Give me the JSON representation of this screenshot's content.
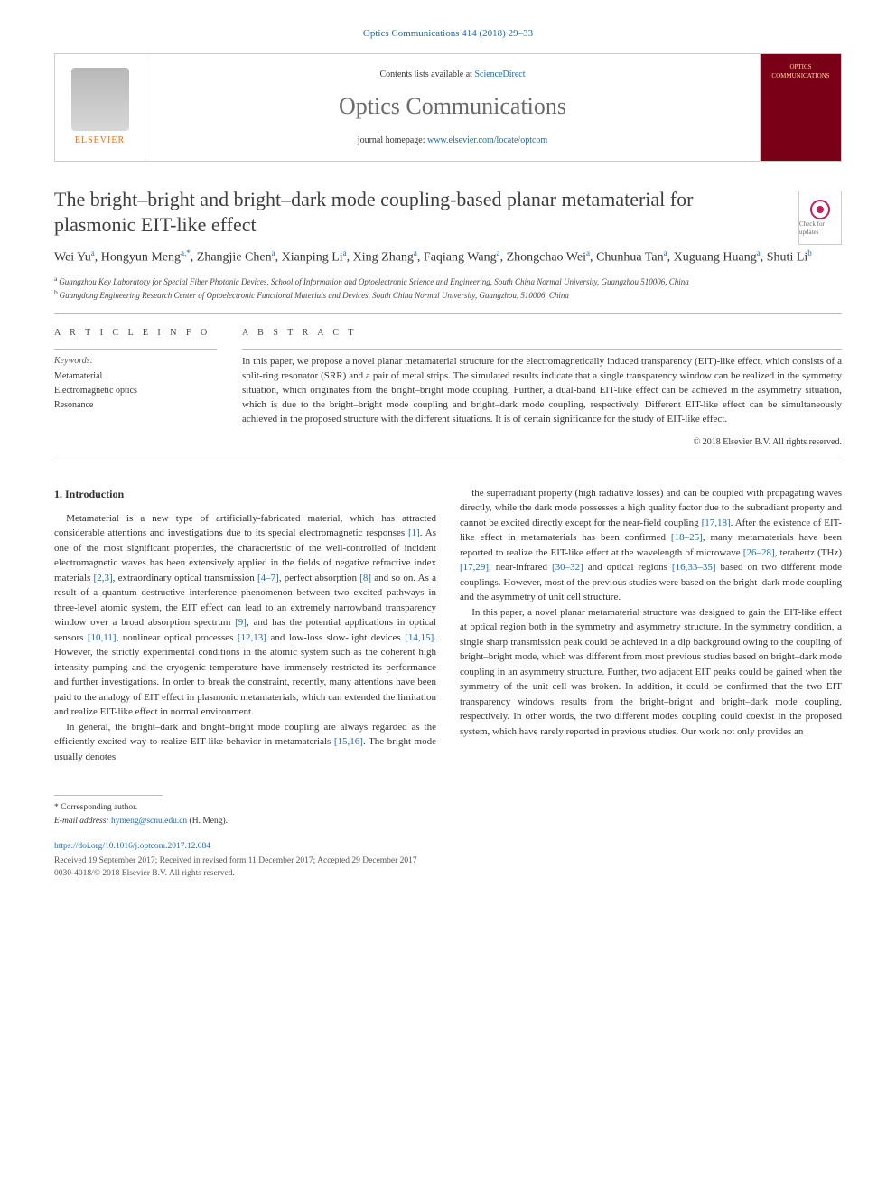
{
  "header": {
    "citation": "Optics Communications 414 (2018) 29–33",
    "contents_prefix": "Contents lists available at ",
    "contents_link": "ScienceDirect",
    "journal": "Optics Communications",
    "homepage_prefix": "journal homepage: ",
    "homepage_link": "www.elsevier.com/locate/optcom",
    "publisher": "ELSEVIER",
    "cover_text": "OPTICS COMMUNICATIONS"
  },
  "check_badge": {
    "label": "Check for updates"
  },
  "article": {
    "title": "The bright–bright and bright–dark mode coupling-based planar metamaterial for plasmonic EIT-like effect",
    "authors_html": "Wei Yu|a|, Hongyun Meng|a,*|, Zhangjie Chen|a|, Xianping Li|a|, Xing Zhang|a|, Faqiang Wang|a|, Zhongchao Wei|a|, Chunhua Tan|a|, Xuguang Huang|a|, Shuti Li|b|",
    "affiliations": [
      {
        "marker": "a",
        "text": "Guangzhou Key Laboratory for Special Fiber Photonic Devices, School of Information and Optoelectronic Science and Engineering, South China Normal University, Guangzhou 510006, China"
      },
      {
        "marker": "b",
        "text": "Guangdong Engineering Research Center of Optoelectronic Functional Materials and Devices, South China Normal University, Guangzhou, 510006, China"
      }
    ]
  },
  "info": {
    "heading": "A R T I C L E   I N F O",
    "keywords_label": "Keywords:",
    "keywords": [
      "Metamaterial",
      "Electromagnetic optics",
      "Resonance"
    ]
  },
  "abstract": {
    "heading": "A B S T R A C T",
    "text": "In this paper, we propose a novel planar metamaterial structure for the electromagnetically induced transparency (EIT)-like effect, which consists of a split-ring resonator (SRR) and a pair of metal strips. The simulated results indicate that a single transparency window can be realized in the symmetry situation, which originates from the bright–bright mode coupling. Further, a dual-band EIT-like effect can be achieved in the asymmetry situation, which is due to the bright–bright mode coupling and bright–dark mode coupling, respectively. Different EIT-like effect can be simultaneously achieved in the proposed structure with the different situations. It is of certain significance for the study of EIT-like effect.",
    "copyright": "© 2018 Elsevier B.V. All rights reserved."
  },
  "body": {
    "section_number": "1.",
    "section_title": "Introduction",
    "col1_para1": "Metamaterial is a new type of artificially-fabricated material, which has attracted considerable attentions and investigations due to its special electromagnetic responses [1]. As one of the most significant properties, the characteristic of the well-controlled of incident electromagnetic waves has been extensively applied in the fields of negative refractive index materials [2,3], extraordinary optical transmission [4–7], perfect absorption [8] and so on. As a result of a quantum destructive interference phenomenon between two excited pathways in three-level atomic system, the EIT effect can lead to an extremely narrowband transparency window over a broad absorption spectrum [9], and has the potential applications in optical sensors [10,11], nonlinear optical processes [12,13] and low-loss slow-light devices [14,15]. However, the strictly experimental conditions in the atomic system such as the coherent high intensity pumping and the cryogenic temperature have immensely restricted its performance and further investigations. In order to break the constraint, recently, many attentions have been paid to the analogy of EIT effect in plasmonic metamaterials, which can extended the limitation and realize EIT-like effect in normal environment.",
    "col1_para2": "In general, the bright–dark and bright–bright mode coupling are always regarded as the efficiently excited way to realize EIT-like behavior in metamaterials [15,16]. The bright mode usually denotes",
    "col2_para1": "the superradiant property (high radiative losses) and can be coupled with propagating waves directly, while the dark mode possesses a high quality factor due to the subradiant property and cannot be excited directly except for the near-field coupling [17,18]. After the existence of EIT-like effect in metamaterials has been confirmed [18–25], many metamaterials have been reported to realize the EIT-like effect at the wavelength of microwave [26–28], terahertz (THz) [17,29], near-infrared [30–32] and optical regions [16,33–35] based on two different mode couplings. However, most of the previous studies were based on the bright–dark mode coupling and the asymmetry of unit cell structure.",
    "col2_para2": "In this paper, a novel planar metamaterial structure was designed to gain the EIT-like effect at optical region both in the symmetry and asymmetry structure. In the symmetry condition, a single sharp transmission peak could be achieved in a dip background owing to the coupling of bright–bright mode, which was different from most previous studies based on bright–dark mode coupling in an asymmetry structure. Further, two adjacent EIT peaks could be gained when the symmetry of the unit cell was broken. In addition, it could be confirmed that the two EIT transparency windows results from the bright–bright and bright–dark mode coupling, respectively. In other words, the two different modes coupling could coexist in the proposed system, which have rarely reported in previous studies. Our work not only provides an"
  },
  "footer": {
    "corr_label": "* Corresponding author.",
    "email_label": "E-mail address:",
    "email": "hymeng@scnu.edu.cn",
    "email_name": "(H. Meng).",
    "doi": "https://doi.org/10.1016/j.optcom.2017.12.084",
    "dates": "Received 19 September 2017; Received in revised form 11 December 2017; Accepted 29 December 2017",
    "issn": "0030-4018/© 2018 Elsevier B.V. All rights reserved."
  },
  "colors": {
    "link": "#1a6bb5",
    "accent_orange": "#ff6a00",
    "cover_bg": "#7a0018",
    "border": "#cccccc",
    "rule": "#bbbbbb",
    "text": "#333333"
  }
}
